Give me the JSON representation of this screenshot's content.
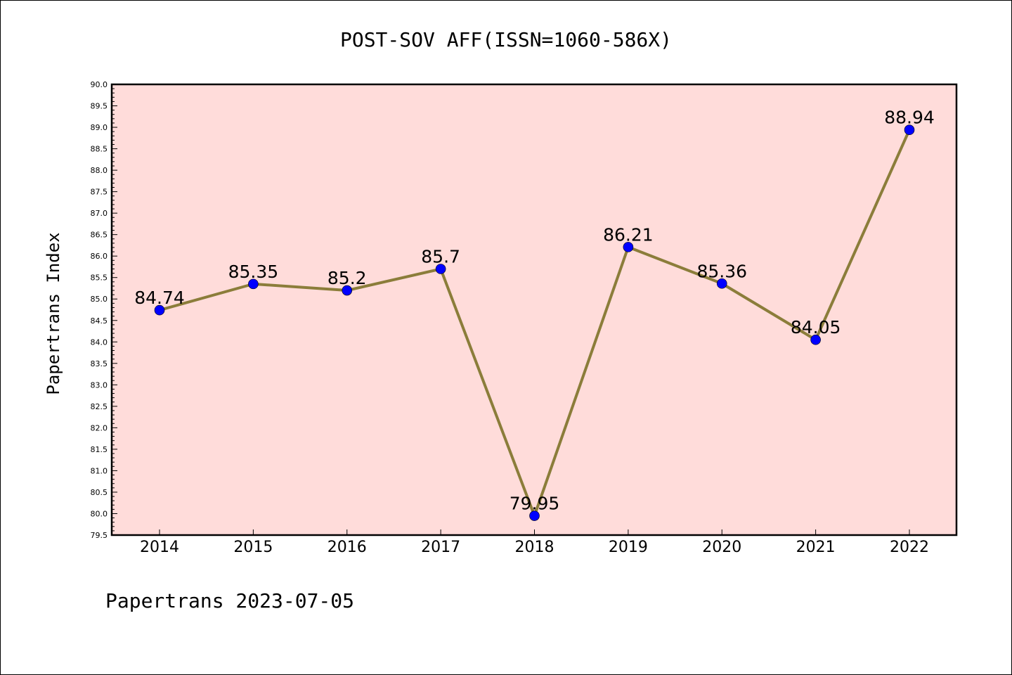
{
  "chart_data": {
    "type": "line",
    "title": "POST-SOV AFF(ISSN=1060-586X)",
    "ylabel": "Papertrans Index",
    "xlabel": "",
    "categories": [
      "2014",
      "2015",
      "2016",
      "2017",
      "2018",
      "2019",
      "2020",
      "2021",
      "2022"
    ],
    "series": [
      {
        "values": [
          84.74,
          85.35,
          85.2,
          85.7,
          79.95,
          86.21,
          85.36,
          84.05,
          88.94
        ],
        "labels": [
          "84.74",
          "85.35",
          "85.2",
          "85.7",
          "79.95",
          "86.21",
          "85.36",
          "84.05",
          "88.94"
        ]
      }
    ],
    "ylim": [
      79.5,
      90.0
    ],
    "ytick_step": 0.5,
    "grid": false,
    "colors": {
      "plot_background": "#FFDCDA",
      "line": "#8B7D3A",
      "marker": "#0000FF"
    },
    "footer": "Papertrans 2023-07-05"
  }
}
